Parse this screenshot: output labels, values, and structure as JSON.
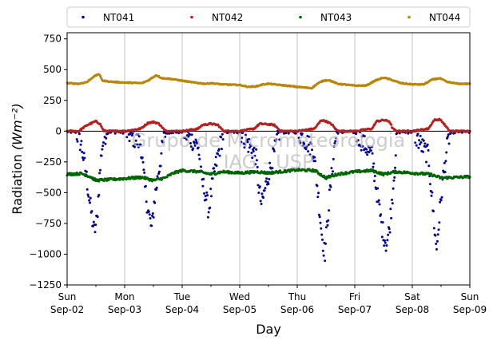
{
  "chart_data": {
    "type": "scatter",
    "xlabel": "Day",
    "ylabel": "Radiation",
    "ylabel_unit": "(Wm⁻²)",
    "watermark": [
      "Grupo de Micrometeorologia",
      "IAG - USP"
    ],
    "xlim": [
      0,
      7
    ],
    "ylim": [
      -1250,
      800
    ],
    "yticks": [
      -1250,
      -1000,
      -750,
      -500,
      -250,
      0,
      250,
      500,
      750
    ],
    "ytick_labels": [
      "−1250",
      "−1000",
      "−750",
      "−500",
      "−250",
      "0",
      "250",
      "500",
      "750"
    ],
    "xticks": [
      0,
      1,
      2,
      3,
      4,
      5,
      6,
      7
    ],
    "xtick_day_labels": [
      "Sun",
      "Mon",
      "Tue",
      "Wed",
      "Thu",
      "Fri",
      "Sat",
      "Sun"
    ],
    "xtick_date_labels": [
      "Sep-02",
      "Sep-03",
      "Sep-04",
      "Sep-05",
      "Sep-06",
      "Sep-07",
      "Sep-08",
      "Sep-09"
    ],
    "grid": "vertical",
    "zero_line": true,
    "legend_position": "top",
    "legend_columns": 4,
    "series": [
      {
        "name": "NT041",
        "color": "#00008b",
        "noise": 20,
        "points": [
          [
            0.0,
            0
          ],
          [
            0.15,
            0
          ],
          [
            0.25,
            -120
          ],
          [
            0.33,
            -350
          ],
          [
            0.4,
            -600
          ],
          [
            0.47,
            -820
          ],
          [
            0.52,
            -720
          ],
          [
            0.56,
            -400
          ],
          [
            0.6,
            -150
          ],
          [
            0.65,
            -40
          ],
          [
            0.7,
            0
          ],
          [
            1.0,
            0
          ],
          [
            1.28,
            -100
          ],
          [
            1.35,
            -450
          ],
          [
            1.4,
            -620
          ],
          [
            1.47,
            -800
          ],
          [
            1.52,
            -550
          ],
          [
            1.6,
            -300
          ],
          [
            1.66,
            -120
          ],
          [
            1.7,
            -20
          ],
          [
            1.75,
            0
          ],
          [
            2.0,
            0
          ],
          [
            2.28,
            -120
          ],
          [
            2.33,
            -380
          ],
          [
            2.4,
            -500
          ],
          [
            2.46,
            -650
          ],
          [
            2.55,
            -350
          ],
          [
            2.62,
            -200
          ],
          [
            2.68,
            -80
          ],
          [
            2.73,
            0
          ],
          [
            3.0,
            0
          ],
          [
            3.28,
            -200
          ],
          [
            3.33,
            -450
          ],
          [
            3.38,
            -600
          ],
          [
            3.45,
            -450
          ],
          [
            3.52,
            -320
          ],
          [
            3.6,
            -180
          ],
          [
            3.66,
            -50
          ],
          [
            3.7,
            0
          ],
          [
            4.0,
            0
          ],
          [
            4.28,
            -150
          ],
          [
            4.36,
            -500
          ],
          [
            4.43,
            -850
          ],
          [
            4.48,
            -1000
          ],
          [
            4.53,
            -700
          ],
          [
            4.6,
            -350
          ],
          [
            4.65,
            -100
          ],
          [
            4.7,
            0
          ],
          [
            5.0,
            0
          ],
          [
            5.3,
            -200
          ],
          [
            5.4,
            -550
          ],
          [
            5.48,
            -800
          ],
          [
            5.55,
            -920
          ],
          [
            5.6,
            -800
          ],
          [
            5.65,
            -550
          ],
          [
            5.7,
            -250
          ],
          [
            5.74,
            0
          ],
          [
            6.0,
            0
          ],
          [
            6.28,
            -200
          ],
          [
            6.33,
            -480
          ],
          [
            6.38,
            -750
          ],
          [
            6.42,
            -970
          ],
          [
            6.47,
            -700
          ],
          [
            6.53,
            -400
          ],
          [
            6.6,
            -150
          ],
          [
            6.65,
            -20
          ],
          [
            6.7,
            0
          ],
          [
            7.0,
            0
          ]
        ]
      },
      {
        "name": "NT042",
        "color": "#b22222",
        "noise": 6,
        "points": [
          [
            0.0,
            0
          ],
          [
            0.2,
            0
          ],
          [
            0.35,
            50
          ],
          [
            0.5,
            80
          ],
          [
            0.57,
            60
          ],
          [
            0.62,
            15
          ],
          [
            0.66,
            0
          ],
          [
            1.0,
            0
          ],
          [
            1.28,
            20
          ],
          [
            1.4,
            65
          ],
          [
            1.5,
            75
          ],
          [
            1.6,
            60
          ],
          [
            1.68,
            15
          ],
          [
            1.72,
            0
          ],
          [
            2.0,
            0
          ],
          [
            2.28,
            20
          ],
          [
            2.35,
            50
          ],
          [
            2.5,
            60
          ],
          [
            2.62,
            50
          ],
          [
            2.7,
            10
          ],
          [
            2.73,
            0
          ],
          [
            3.0,
            0
          ],
          [
            3.25,
            20
          ],
          [
            3.35,
            60
          ],
          [
            3.5,
            55
          ],
          [
            3.6,
            50
          ],
          [
            3.68,
            15
          ],
          [
            3.72,
            0
          ],
          [
            4.0,
            0
          ],
          [
            4.3,
            20
          ],
          [
            4.42,
            90
          ],
          [
            4.5,
            80
          ],
          [
            4.6,
            55
          ],
          [
            4.68,
            10
          ],
          [
            4.72,
            0
          ],
          [
            5.0,
            0
          ],
          [
            5.3,
            20
          ],
          [
            5.38,
            80
          ],
          [
            5.5,
            90
          ],
          [
            5.6,
            80
          ],
          [
            5.66,
            20
          ],
          [
            5.72,
            0
          ],
          [
            6.0,
            0
          ],
          [
            6.28,
            20
          ],
          [
            6.38,
            90
          ],
          [
            6.48,
            95
          ],
          [
            6.55,
            60
          ],
          [
            6.62,
            15
          ],
          [
            6.66,
            0
          ],
          [
            7.0,
            0
          ]
        ]
      },
      {
        "name": "NT043",
        "color": "#006400",
        "noise": 10,
        "points": [
          [
            0.0,
            -350
          ],
          [
            0.25,
            -345
          ],
          [
            0.4,
            -370
          ],
          [
            0.5,
            -400
          ],
          [
            0.7,
            -395
          ],
          [
            1.0,
            -385
          ],
          [
            1.3,
            -375
          ],
          [
            1.5,
            -400
          ],
          [
            1.7,
            -380
          ],
          [
            1.85,
            -340
          ],
          [
            2.0,
            -320
          ],
          [
            2.3,
            -330
          ],
          [
            2.5,
            -350
          ],
          [
            2.7,
            -330
          ],
          [
            3.0,
            -340
          ],
          [
            3.3,
            -330
          ],
          [
            3.5,
            -340
          ],
          [
            3.7,
            -330
          ],
          [
            4.0,
            -315
          ],
          [
            4.3,
            -320
          ],
          [
            4.5,
            -380
          ],
          [
            4.7,
            -350
          ],
          [
            5.0,
            -330
          ],
          [
            5.3,
            -320
          ],
          [
            5.5,
            -350
          ],
          [
            5.7,
            -330
          ],
          [
            6.0,
            -340
          ],
          [
            6.3,
            -350
          ],
          [
            6.5,
            -380
          ],
          [
            6.8,
            -375
          ],
          [
            7.0,
            -370
          ]
        ]
      },
      {
        "name": "NT044",
        "color": "#b8860b",
        "noise": 4,
        "points": [
          [
            0.0,
            390
          ],
          [
            0.2,
            385
          ],
          [
            0.35,
            400
          ],
          [
            0.45,
            440
          ],
          [
            0.55,
            465
          ],
          [
            0.62,
            410
          ],
          [
            0.8,
            400
          ],
          [
            1.0,
            395
          ],
          [
            1.3,
            390
          ],
          [
            1.4,
            410
          ],
          [
            1.5,
            440
          ],
          [
            1.55,
            455
          ],
          [
            1.65,
            430
          ],
          [
            1.8,
            425
          ],
          [
            2.0,
            410
          ],
          [
            2.2,
            395
          ],
          [
            2.4,
            385
          ],
          [
            2.5,
            390
          ],
          [
            2.7,
            380
          ],
          [
            3.0,
            375
          ],
          [
            3.15,
            360
          ],
          [
            3.3,
            365
          ],
          [
            3.4,
            380
          ],
          [
            3.5,
            385
          ],
          [
            3.7,
            375
          ],
          [
            4.0,
            360
          ],
          [
            4.25,
            350
          ],
          [
            4.35,
            385
          ],
          [
            4.45,
            410
          ],
          [
            4.55,
            415
          ],
          [
            4.7,
            385
          ],
          [
            5.0,
            370
          ],
          [
            5.2,
            370
          ],
          [
            5.35,
            410
          ],
          [
            5.5,
            435
          ],
          [
            5.62,
            420
          ],
          [
            5.8,
            390
          ],
          [
            6.0,
            380
          ],
          [
            6.2,
            380
          ],
          [
            6.35,
            420
          ],
          [
            6.48,
            430
          ],
          [
            6.6,
            400
          ],
          [
            6.8,
            385
          ],
          [
            7.0,
            385
          ]
        ]
      }
    ]
  }
}
